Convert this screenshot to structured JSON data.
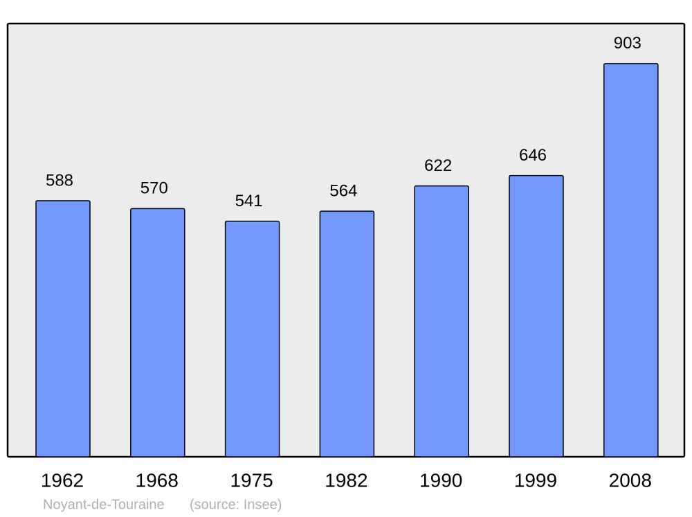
{
  "chart_data": {
    "type": "bar",
    "categories": [
      "1962",
      "1968",
      "1975",
      "1982",
      "1990",
      "1999",
      "2008"
    ],
    "values": [
      588,
      570,
      541,
      564,
      622,
      646,
      903
    ],
    "color": "#7399ff",
    "ylim": [
      0,
      995
    ],
    "caption": "Noyant-de-Touraine",
    "source": "(source: Insee)"
  }
}
